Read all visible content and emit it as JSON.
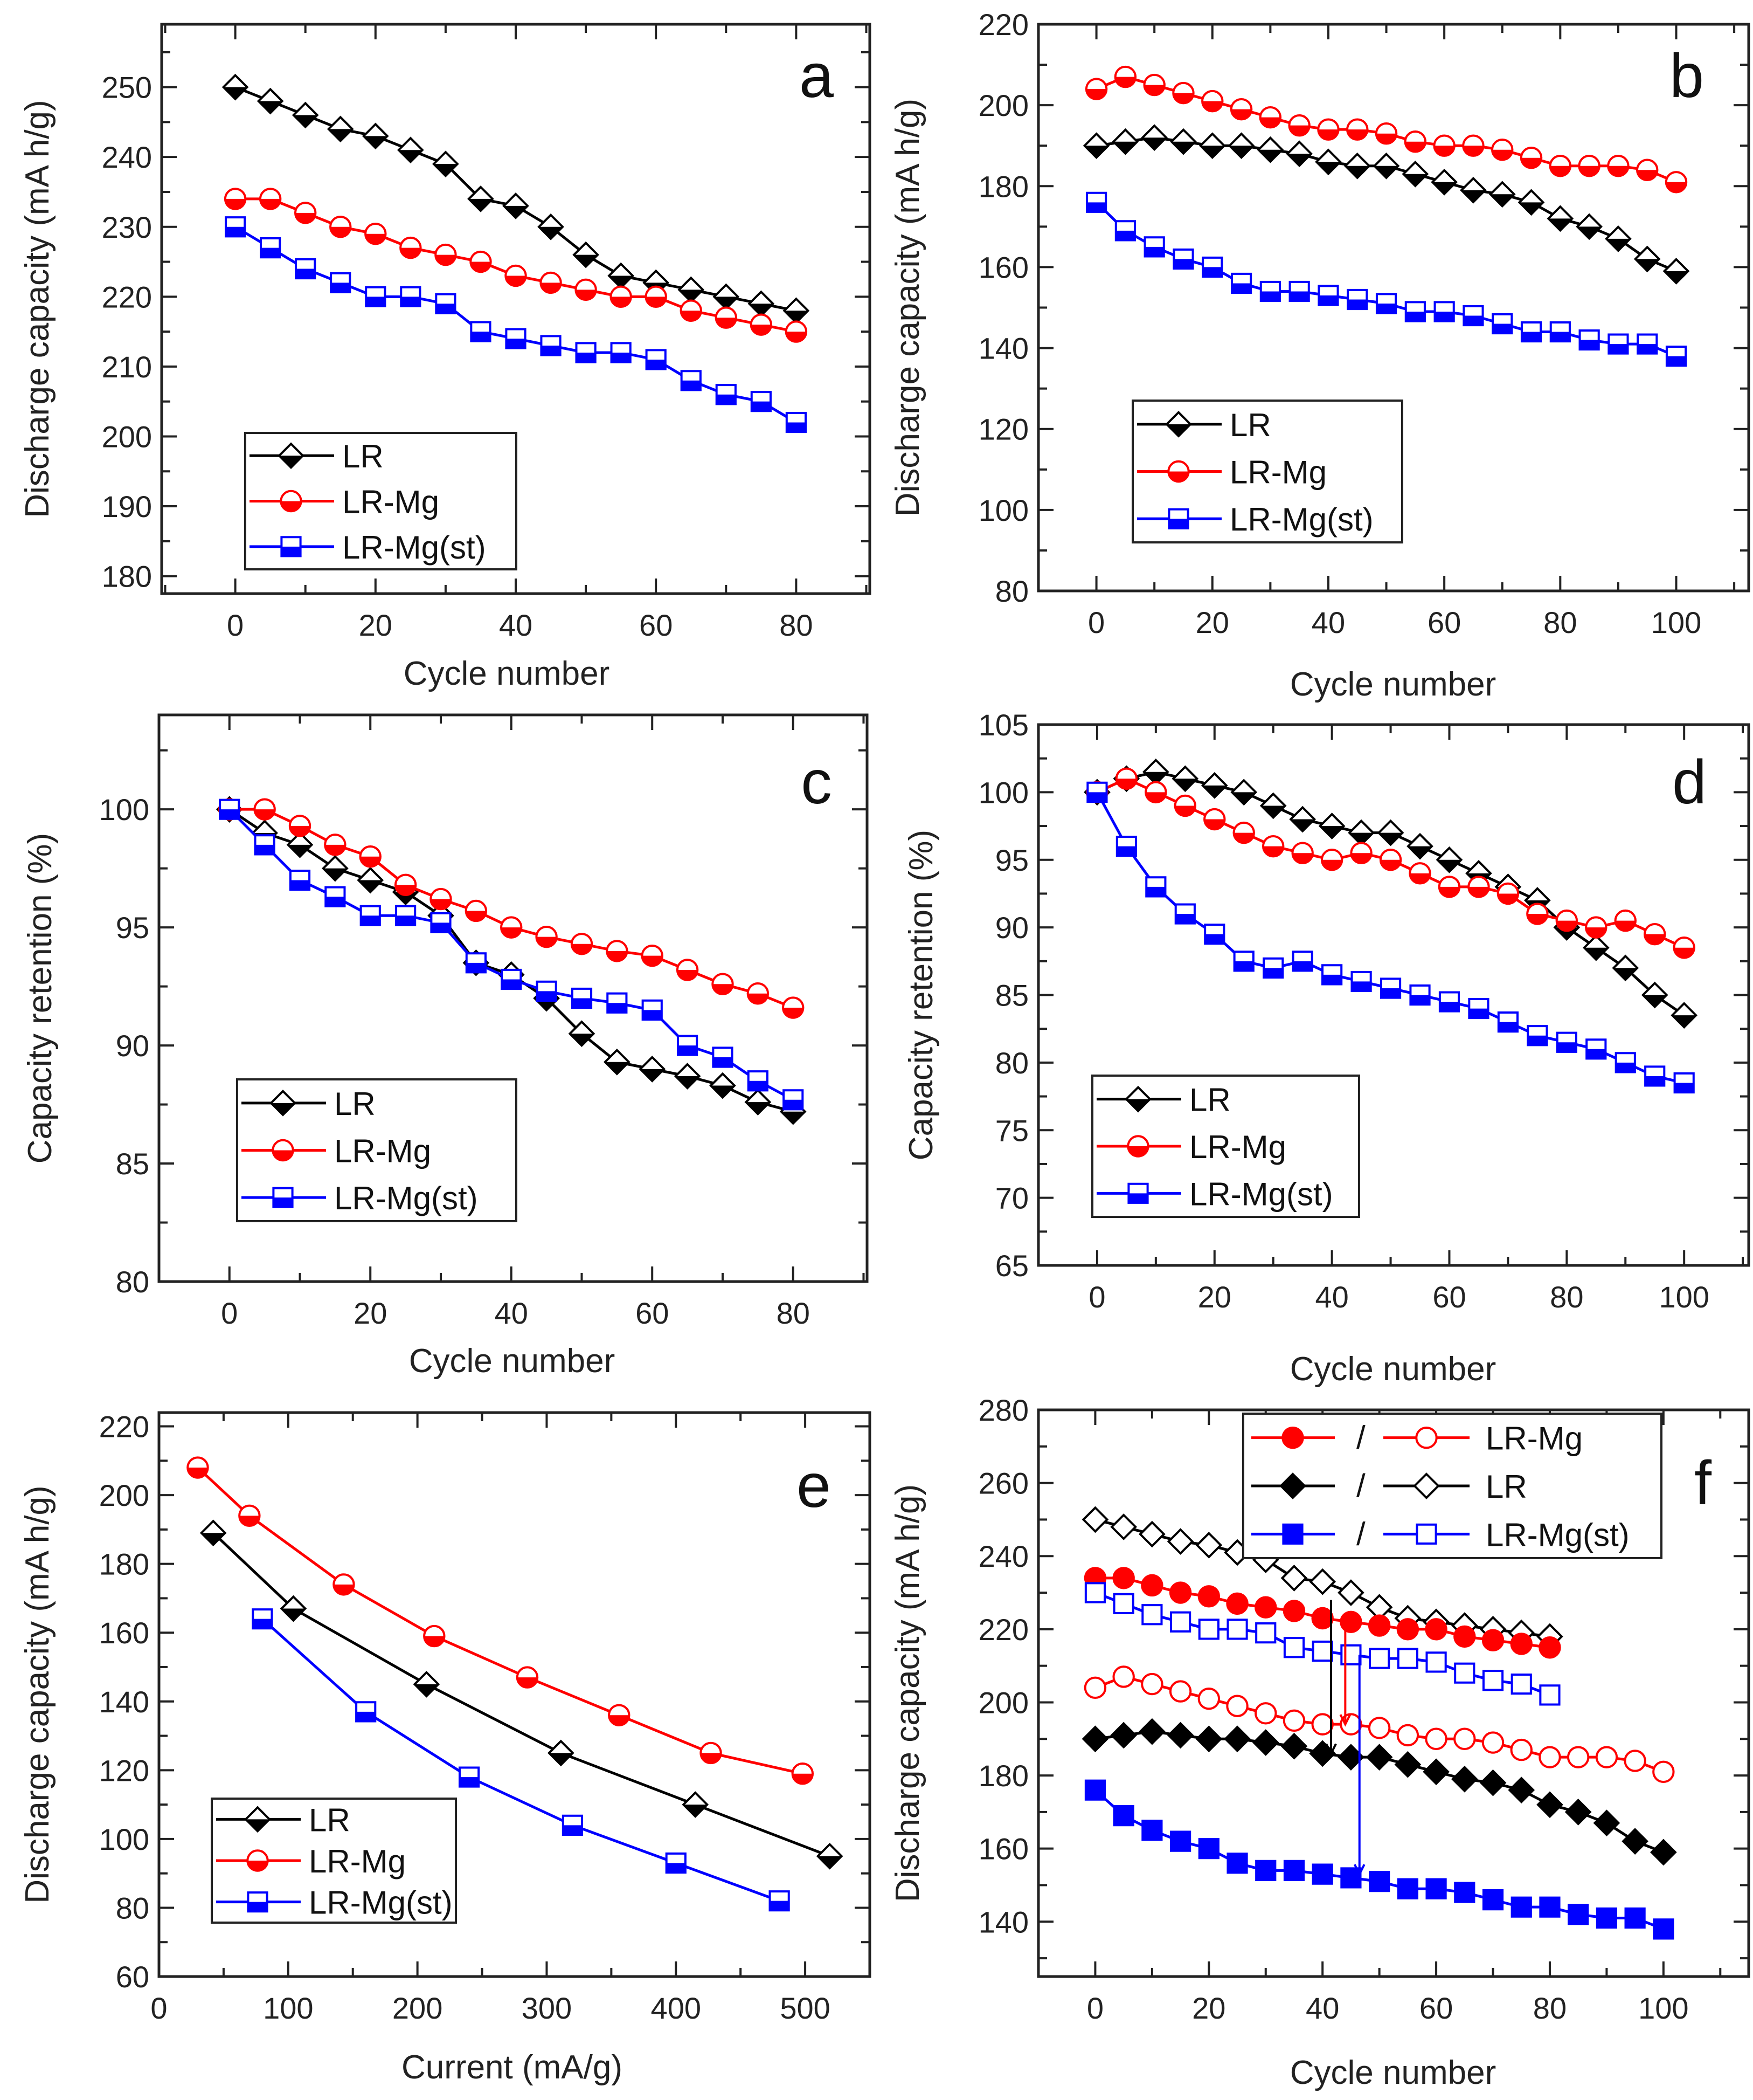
{
  "chart_data": [
    {
      "panel": "a",
      "type": "line",
      "xlabel": "Cycle number",
      "ylabel": "Discharge capacity (mA h/g)",
      "xlim": [
        -10.5,
        90.5
      ],
      "ylim": [
        177.5,
        259
      ],
      "xticks": [
        0,
        20,
        40,
        60,
        80
      ],
      "yticks": [
        180,
        190,
        200,
        210,
        220,
        230,
        240,
        250
      ],
      "legend_position": "bottom-left",
      "grid": false,
      "x": [
        0,
        5,
        10,
        15,
        20,
        25,
        30,
        35,
        40,
        45,
        50,
        55,
        60,
        65,
        70,
        75,
        80
      ],
      "series": [
        {
          "name": "LR",
          "color": "#000000",
          "marker": "diamond",
          "fill": "half",
          "values": [
            250,
            248,
            246,
            244,
            243,
            241,
            239,
            234,
            233,
            230,
            226,
            223,
            222,
            221,
            220,
            219,
            218
          ]
        },
        {
          "name": "LR-Mg",
          "color": "#ff0000",
          "marker": "circle",
          "fill": "half",
          "values": [
            234,
            234,
            232,
            230,
            229,
            227,
            226,
            225,
            223,
            222,
            221,
            220,
            220,
            218,
            217,
            216,
            215
          ]
        },
        {
          "name": "LR-Mg(st)",
          "color": "#0000ff",
          "marker": "square",
          "fill": "half",
          "values": [
            230,
            227,
            224,
            222,
            220,
            220,
            219,
            215,
            214,
            213,
            212,
            212,
            211,
            208,
            206,
            205,
            202
          ]
        }
      ]
    },
    {
      "panel": "b",
      "type": "line",
      "xlabel": "Cycle number",
      "ylabel": "Discharge capacity (mA h/g)",
      "xlim": [
        -10,
        112.5
      ],
      "ylim": [
        80,
        220
      ],
      "xticks": [
        0,
        20,
        40,
        60,
        80,
        100
      ],
      "yticks": [
        80,
        100,
        120,
        140,
        160,
        180,
        200,
        220
      ],
      "legend_position": "bottom-left",
      "grid": false,
      "x": [
        0,
        5,
        10,
        15,
        20,
        25,
        30,
        35,
        40,
        45,
        50,
        55,
        60,
        65,
        70,
        75,
        80,
        85,
        90,
        95,
        100
      ],
      "series": [
        {
          "name": "LR",
          "color": "#000000",
          "marker": "diamond",
          "fill": "half",
          "values": [
            190,
            191,
            192,
            191,
            190,
            190,
            189,
            188,
            186,
            185,
            185,
            183,
            181,
            179,
            178,
            176,
            172,
            170,
            167,
            162,
            159
          ]
        },
        {
          "name": "LR-Mg",
          "color": "#ff0000",
          "marker": "circle",
          "fill": "half",
          "values": [
            204,
            207,
            205,
            203,
            201,
            199,
            197,
            195,
            194,
            194,
            193,
            191,
            190,
            190,
            189,
            187,
            185,
            185,
            185,
            184,
            181
          ]
        },
        {
          "name": "LR-Mg(st)",
          "color": "#0000ff",
          "marker": "square",
          "fill": "half",
          "values": [
            176,
            169,
            165,
            162,
            160,
            156,
            154,
            154,
            153,
            152,
            151,
            149,
            149,
            148,
            146,
            144,
            144,
            142,
            141,
            141,
            138
          ]
        }
      ]
    },
    {
      "panel": "c",
      "type": "line",
      "xlabel": "Cycle number",
      "ylabel": "Capacity retention (%)",
      "xlim": [
        -10,
        90.5
      ],
      "ylim": [
        80,
        104
      ],
      "xticks": [
        0,
        20,
        40,
        60,
        80
      ],
      "yticks": [
        80,
        85,
        90,
        95,
        100
      ],
      "legend_position": "bottom-left",
      "grid": false,
      "x": [
        0,
        5,
        10,
        15,
        20,
        25,
        30,
        35,
        40,
        45,
        50,
        55,
        60,
        65,
        70,
        75,
        80
      ],
      "series": [
        {
          "name": "LR",
          "color": "#000000",
          "marker": "diamond",
          "fill": "half",
          "values": [
            100,
            99,
            98.5,
            97.5,
            97,
            96.5,
            95.5,
            93.5,
            93,
            92,
            90.5,
            89.3,
            89,
            88.7,
            88.3,
            87.6,
            87.2
          ]
        },
        {
          "name": "LR-Mg",
          "color": "#ff0000",
          "marker": "circle",
          "fill": "half",
          "values": [
            100,
            100,
            99.3,
            98.5,
            98,
            96.8,
            96.2,
            95.7,
            95,
            94.6,
            94.3,
            94,
            93.8,
            93.2,
            92.6,
            92.2,
            91.6
          ]
        },
        {
          "name": "LR-Mg(st)",
          "color": "#0000ff",
          "marker": "square",
          "fill": "half",
          "values": [
            100,
            98.5,
            97,
            96.3,
            95.5,
            95.5,
            95.2,
            93.5,
            92.8,
            92.3,
            92,
            91.8,
            91.5,
            90,
            89.5,
            88.5,
            87.7
          ]
        }
      ]
    },
    {
      "panel": "d",
      "type": "line",
      "xlabel": "Cycle number",
      "ylabel": "Capacity retention (%)",
      "xlim": [
        -10,
        111
      ],
      "ylim": [
        65,
        105
      ],
      "xticks": [
        0,
        20,
        40,
        60,
        80,
        100
      ],
      "yticks": [
        65,
        70,
        75,
        80,
        85,
        90,
        95,
        100,
        105
      ],
      "legend_position": "bottom-left",
      "grid": false,
      "x": [
        0,
        5,
        10,
        15,
        20,
        25,
        30,
        35,
        40,
        45,
        50,
        55,
        60,
        65,
        70,
        75,
        80,
        85,
        90,
        95,
        100
      ],
      "series": [
        {
          "name": "LR",
          "color": "#000000",
          "marker": "diamond",
          "fill": "half",
          "values": [
            100,
            101,
            101.5,
            101,
            100.5,
            100,
            99,
            98,
            97.5,
            97,
            97,
            96,
            95,
            94,
            93,
            92,
            90,
            88.5,
            87,
            85,
            83.5
          ]
        },
        {
          "name": "LR-Mg",
          "color": "#ff0000",
          "marker": "circle",
          "fill": "half",
          "values": [
            100,
            101,
            100,
            99,
            98,
            97,
            96,
            95.5,
            95,
            95.5,
            95,
            94,
            93,
            93,
            92.5,
            91,
            90.5,
            90,
            90.5,
            89.5,
            88.5
          ]
        },
        {
          "name": "LR-Mg(st)",
          "color": "#0000ff",
          "marker": "square",
          "fill": "half",
          "values": [
            100,
            96,
            93,
            91,
            89.5,
            87.5,
            87,
            87.5,
            86.5,
            86,
            85.5,
            85,
            84.5,
            84,
            83,
            82,
            81.5,
            81,
            80,
            79,
            78.5
          ]
        }
      ]
    },
    {
      "panel": "e",
      "type": "line",
      "xlabel": "Current (mA/g)",
      "ylabel": "Discharge capacity (mA h/g)",
      "xlim": [
        0,
        550
      ],
      "ylim": [
        60,
        224
      ],
      "xticks": [
        0,
        100,
        200,
        300,
        400,
        500
      ],
      "yticks": [
        60,
        80,
        100,
        120,
        140,
        160,
        180,
        200,
        220
      ],
      "legend_position": "bottom-left",
      "grid": false,
      "series": [
        {
          "name": "LR",
          "color": "#000000",
          "marker": "diamond",
          "fill": "half",
          "x": [
            42,
            104,
            207,
            311,
            415,
            519
          ],
          "values": [
            189,
            167,
            145,
            125,
            110,
            95
          ]
        },
        {
          "name": "LR-Mg",
          "color": "#ff0000",
          "marker": "circle",
          "fill": "half",
          "x": [
            30,
            70,
            143,
            213,
            285,
            356,
            427,
            498
          ],
          "values": [
            208,
            194,
            174,
            159,
            147,
            136,
            125,
            119
          ]
        },
        {
          "name": "LR-Mg(st)",
          "color": "#0000ff",
          "marker": "square",
          "fill": "half",
          "x": [
            80,
            160,
            240,
            320,
            400,
            480
          ],
          "values": [
            164,
            137,
            118,
            104,
            93,
            82
          ]
        }
      ]
    },
    {
      "panel": "f",
      "type": "line",
      "xlabel": "Cycle number",
      "ylabel": "Discharge capacity (mA h/g)",
      "xlim": [
        -10,
        115
      ],
      "ylim": [
        125,
        280
      ],
      "xticks": [
        0,
        20,
        40,
        60,
        80,
        100
      ],
      "yticks": [
        140,
        160,
        180,
        200,
        220,
        240,
        260,
        280
      ],
      "legend_position": "top-center",
      "grid": false,
      "legend": [
        {
          "label": "LR-Mg",
          "color": "#ff0000",
          "marker": "circle",
          "separator": "/"
        },
        {
          "label": "LR",
          "color": "#000000",
          "marker": "diamond",
          "separator": "/"
        },
        {
          "label": "LR-Mg(st)",
          "color": "#0000ff",
          "marker": "square",
          "separator": "/"
        }
      ],
      "series": [
        {
          "color": "#000000",
          "marker": "diamond",
          "fill": "open",
          "x": [
            0,
            5,
            10,
            15,
            20,
            25,
            30,
            35,
            40,
            45,
            50,
            55,
            60,
            65,
            70,
            75,
            80
          ],
          "values": [
            250,
            248,
            246,
            244,
            243,
            241,
            239,
            234,
            233,
            230,
            226,
            223,
            222,
            221,
            220,
            219,
            218
          ]
        },
        {
          "color": "#ff0000",
          "marker": "circle",
          "fill": "full",
          "x": [
            0,
            5,
            10,
            15,
            20,
            25,
            30,
            35,
            40,
            45,
            50,
            55,
            60,
            65,
            70,
            75,
            80
          ],
          "values": [
            234,
            234,
            232,
            230,
            229,
            227,
            226,
            225,
            223,
            222,
            221,
            220,
            220,
            218,
            217,
            216,
            215
          ]
        },
        {
          "color": "#0000ff",
          "marker": "square",
          "fill": "open",
          "x": [
            0,
            5,
            10,
            15,
            20,
            25,
            30,
            35,
            40,
            45,
            50,
            55,
            60,
            65,
            70,
            75,
            80
          ],
          "values": [
            230,
            227,
            224,
            222,
            220,
            220,
            219,
            215,
            214,
            213,
            212,
            212,
            211,
            208,
            206,
            205,
            202
          ]
        },
        {
          "color": "#ff0000",
          "marker": "circle",
          "fill": "open",
          "x": [
            0,
            5,
            10,
            15,
            20,
            25,
            30,
            35,
            40,
            45,
            50,
            55,
            60,
            65,
            70,
            75,
            80,
            85,
            90,
            95,
            100
          ],
          "values": [
            204,
            207,
            205,
            203,
            201,
            199,
            197,
            195,
            194,
            194,
            193,
            191,
            190,
            190,
            189,
            187,
            185,
            185,
            185,
            184,
            181
          ]
        },
        {
          "color": "#000000",
          "marker": "diamond",
          "fill": "full",
          "x": [
            0,
            5,
            10,
            15,
            20,
            25,
            30,
            35,
            40,
            45,
            50,
            55,
            60,
            65,
            70,
            75,
            80,
            85,
            90,
            95,
            100
          ],
          "values": [
            190,
            191,
            192,
            191,
            190,
            190,
            189,
            188,
            186,
            185,
            185,
            183,
            181,
            179,
            178,
            176,
            172,
            170,
            167,
            162,
            159
          ]
        },
        {
          "color": "#0000ff",
          "marker": "square",
          "fill": "full",
          "x": [
            0,
            5,
            10,
            15,
            20,
            25,
            30,
            35,
            40,
            45,
            50,
            55,
            60,
            65,
            70,
            75,
            80,
            85,
            90,
            95,
            100
          ],
          "values": [
            176,
            169,
            165,
            162,
            160,
            156,
            154,
            154,
            153,
            152,
            151,
            149,
            149,
            148,
            146,
            144,
            144,
            142,
            141,
            141,
            138
          ]
        }
      ],
      "arrows": [
        {
          "x": 41.5,
          "from": 228,
          "to": 186,
          "color": "#000000"
        },
        {
          "x": 44,
          "from": 224,
          "to": 194,
          "color": "#ff0000"
        },
        {
          "x": 46.5,
          "from": 213,
          "to": 153,
          "color": "#0000ff"
        }
      ]
    }
  ]
}
